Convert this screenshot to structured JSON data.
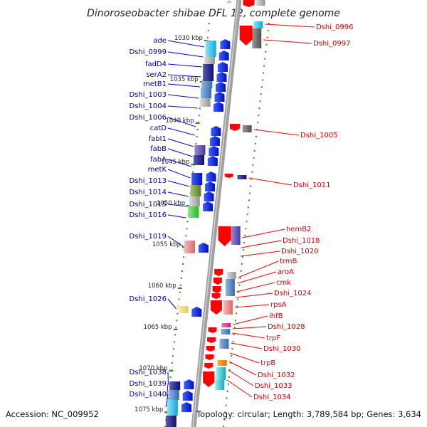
{
  "title": "Dinoroseobacter shibae DFL 12, complete genome",
  "footer": {
    "accession": "Accession: NC_009952",
    "topology": "Topology: circular; Length: 3,789,584 bp; Genes: 3,634"
  },
  "scale_labels": [
    "1030 kbp",
    "1035 kbp",
    "1040 kbp",
    "1045 kbp",
    "1050 kbp",
    "1055 kbp",
    "1060 kbp",
    "1065 kbp",
    "1070 kbp",
    "1075 kbp"
  ],
  "genes_left": [
    "ade",
    "Dshi_0999",
    "fadD4",
    "serA2",
    "metB1",
    "Dshi_1003",
    "Dshi_1004",
    "Dshi_1006",
    "catD",
    "fabI1",
    "fabB",
    "fabA",
    "metK",
    "Dshi_1013",
    "Dshi_1014",
    "Dshi_1015",
    "Dshi_1016",
    "Dshi_1019",
    "Dshi_1026",
    "Dshi_1038",
    "Dshi_1039",
    "Dshi_1040"
  ],
  "genes_right": [
    "Dshi_0996",
    "Dshi_0997",
    "Dshi_1005",
    "Dshi_1011",
    "hemB2",
    "Dshi_1018",
    "Dshi_1020",
    "trmB",
    "aroA",
    "cmk",
    "Dshi_1024",
    "rpsA",
    "ihfB",
    "Dshi_1028",
    "trpF",
    "Dshi_1030",
    "trpB",
    "Dshi_1032",
    "Dshi_1033",
    "Dshi_1034"
  ],
  "colors": {
    "forward": "#0000ff",
    "reverse": "#ff0000",
    "left_label": "#00009c",
    "right_label": "#d00000",
    "backbone": "#909090",
    "ring": "#2e8b22"
  }
}
